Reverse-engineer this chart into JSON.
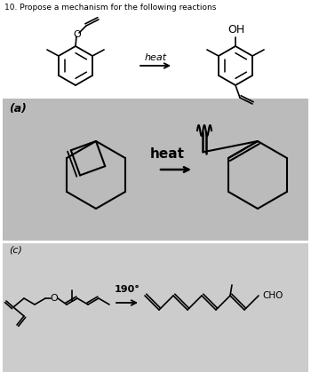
{
  "title": "10. Propose a mechanism for the following reactions",
  "title_fontsize": 6.5,
  "title_color": "#000000",
  "background_color": "#ffffff",
  "panel_a_bg": "#bbbbbb",
  "panel_c_bg": "#cccccc",
  "label_a": "(a)",
  "label_c": "(c)",
  "arrow_label_top": "heat",
  "arrow_label_middle": "heat",
  "arrow_label_bottom": "190°",
  "oh_label": "OH",
  "cho_label": "CHO"
}
